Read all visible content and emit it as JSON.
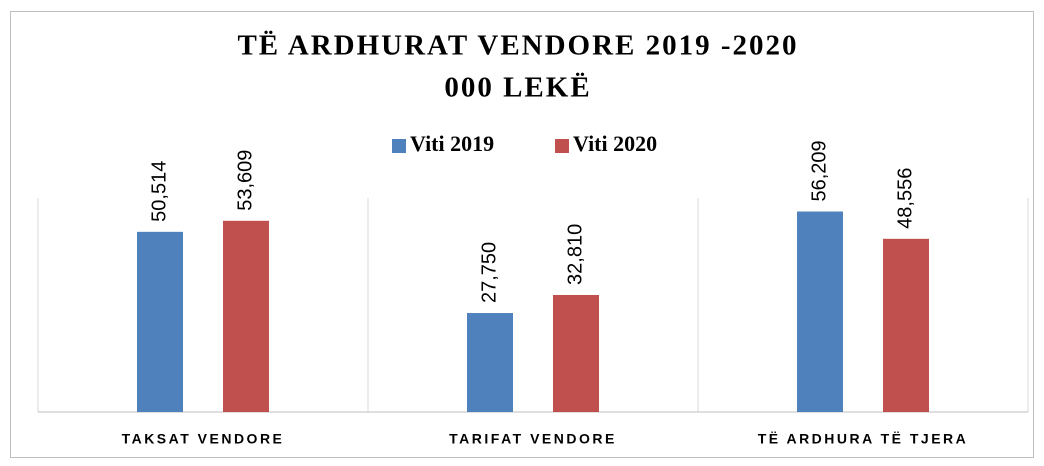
{
  "chart_data": {
    "type": "bar",
    "title": "TË ARDHURAT VENDORE 2019 -2020",
    "subtitle": "000 LEKË",
    "categories": [
      "TAKSAT VENDORE",
      "TARIFAT VENDORE",
      "TË ARDHURA TË TJERA"
    ],
    "series": [
      {
        "name": "Viti 2019",
        "color": "#4f81bd",
        "values": [
          50514,
          27750,
          56209
        ],
        "value_labels": [
          "50,514",
          "27,750",
          "56,209"
        ]
      },
      {
        "name": "Viti 2020",
        "color": "#c0504d",
        "values": [
          53609,
          32810,
          48556
        ],
        "value_labels": [
          "53,609",
          "32,810",
          "48,556"
        ]
      }
    ],
    "ylim": [
      0,
      60000
    ],
    "legend": "top"
  }
}
